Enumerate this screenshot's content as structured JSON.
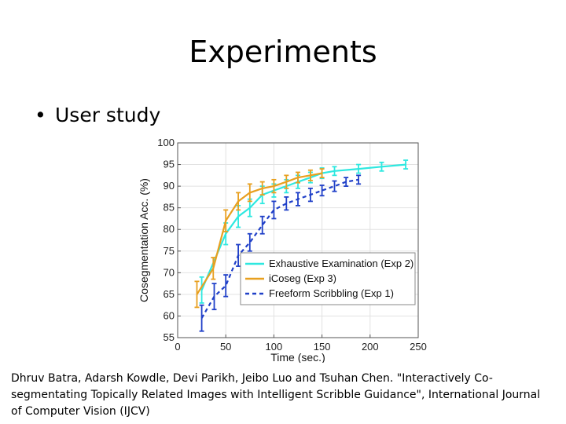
{
  "slide": {
    "title": "Experiments",
    "bullet": "User study",
    "citation": "Dhruv Batra, Adarsh Kowdle, Devi Parikh, Jeibo Luo and Tsuhan Chen. \"Interactively Co-segmentating Topically Related Images with Intelligent Scribble Guidance\", International Journal of Computer Vision (IJCV)"
  },
  "chart_data": {
    "type": "line",
    "title": "",
    "xlabel": "Time (sec.)",
    "ylabel": "Cosegmentation Acc. (%)",
    "xlim": [
      0,
      250
    ],
    "ylim": [
      55,
      100
    ],
    "xticks": [
      0,
      50,
      100,
      150,
      200,
      250
    ],
    "yticks": [
      55,
      60,
      65,
      70,
      75,
      80,
      85,
      90,
      95,
      100
    ],
    "grid": true,
    "legend_position": "lower-right",
    "series": [
      {
        "name": "Exhaustive Examination (Exp 2)",
        "color": "#2ee8e0",
        "style": "solid",
        "x": [
          25,
          50,
          63,
          75,
          88,
          100,
          113,
          125,
          138,
          150,
          163,
          188,
          212,
          237
        ],
        "y": [
          66,
          79,
          83,
          85,
          88,
          89,
          90,
          91,
          92,
          93,
          93.5,
          94,
          94.5,
          95
        ],
        "err": [
          3,
          2.5,
          2.5,
          2,
          2,
          1.5,
          1.5,
          1.5,
          1.2,
          1.2,
          1,
          1,
          1,
          1
        ]
      },
      {
        "name": "iCoseg (Exp 3)",
        "color": "#e8a020",
        "style": "solid",
        "x": [
          20,
          37,
          50,
          63,
          75,
          88,
          100,
          113,
          125,
          138,
          150
        ],
        "y": [
          65,
          71,
          82,
          86.5,
          88.5,
          89.5,
          90,
          91,
          92,
          92.5,
          93
        ],
        "err": [
          3,
          2.5,
          2.5,
          2,
          2,
          1.5,
          1.5,
          1.5,
          1.2,
          1.2,
          1
        ]
      },
      {
        "name": "Freeform Scribbling (Exp 1)",
        "color": "#2040c8",
        "style": "dashed",
        "x": [
          25,
          38,
          50,
          63,
          75,
          88,
          100,
          113,
          125,
          138,
          150,
          163,
          175,
          188
        ],
        "y": [
          59.5,
          64.5,
          67,
          74,
          77,
          81,
          84.5,
          86,
          87,
          88,
          89,
          90,
          91,
          91.5
        ],
        "err": [
          3,
          3,
          2.5,
          2.5,
          2,
          2,
          2,
          1.5,
          1.5,
          1.5,
          1.2,
          1.2,
          1,
          1
        ]
      }
    ]
  }
}
